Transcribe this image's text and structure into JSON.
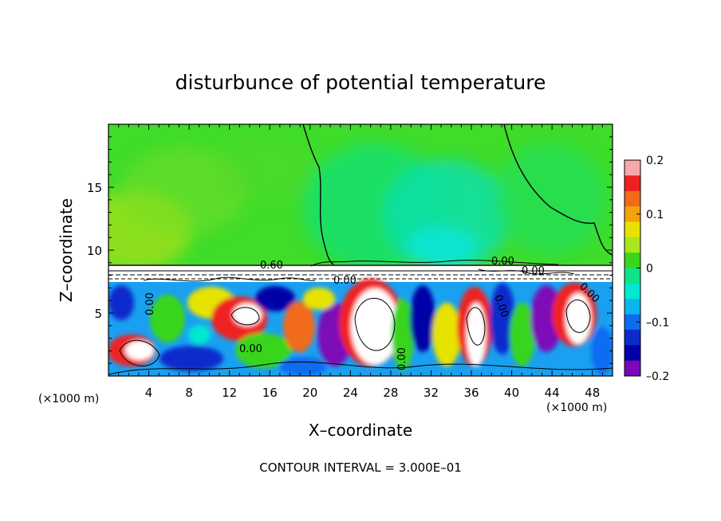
{
  "chart_data": {
    "type": "heatmap",
    "title": "disturbunce of potential temperature",
    "xlabel": "X–coordinate",
    "ylabel": "Z–coordinate",
    "x_unit": "(×1000 m)",
    "y_unit": "(×1000 m)",
    "xlim": [
      0,
      50
    ],
    "ylim": [
      0,
      20
    ],
    "x_ticks": [
      4,
      8,
      12,
      16,
      20,
      24,
      28,
      32,
      36,
      40,
      44,
      48
    ],
    "y_ticks": [
      5,
      10,
      15
    ],
    "colorbar": {
      "range": [
        -0.2,
        0.2
      ],
      "ticks": [
        0.2,
        0.1,
        0,
        -0.1,
        -0.2
      ],
      "tick_labels": [
        "0.2",
        "0.1",
        "0",
        "–0.1",
        "–0.2"
      ],
      "colors": [
        "#f7a8a8",
        "#ef2020",
        "#f26a1a",
        "#f5a20a",
        "#e7e300",
        "#a9e61a",
        "#38d51b",
        "#0ee38a",
        "#00e9d0",
        "#0ab5f0",
        "#0a6cf0",
        "#0a2ccc",
        "#0000a8",
        "#7b07b8"
      ]
    },
    "contour_labels": [
      "0.60",
      "0.00",
      "0.00",
      "0.00",
      "0.00",
      "0.00",
      "0.00",
      "0.00",
      "0.00"
    ],
    "annotation": "CONTOUR INTERVAL = 3.000E–01"
  }
}
